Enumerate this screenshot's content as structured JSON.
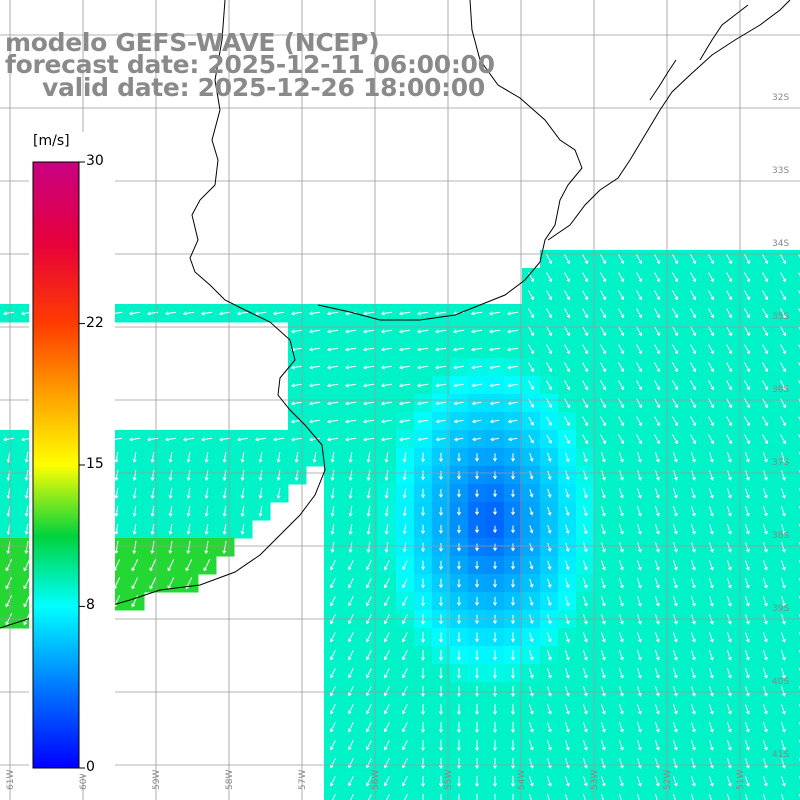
{
  "title": {
    "line1": "modelo GEFS-WAVE (NCEP)",
    "line2": "forecast date: 2025-12-11 06:00:00",
    "line3": "valid date: 2025-12-26 18:00:00"
  },
  "colorbar": {
    "unit": "[m/s]",
    "ticks": [
      {
        "value": 30,
        "label": "30"
      },
      {
        "value": 22,
        "label": "22"
      },
      {
        "value": 15,
        "label": "15"
      },
      {
        "value": 8,
        "label": "8"
      },
      {
        "value": 0,
        "label": "0"
      }
    ],
    "min": 0,
    "max": 30
  },
  "lat_labels": [
    "32S",
    "33S",
    "34S",
    "35S",
    "36S",
    "37S",
    "38S",
    "39S",
    "40S",
    "41S"
  ],
  "lon_labels": [
    "61W",
    "60W",
    "59W",
    "58W",
    "57W",
    "56W",
    "55W",
    "54W",
    "53W",
    "52W",
    "51W"
  ],
  "colors": {
    "land": "#ffffff",
    "coast": "#000000",
    "grid": "#9a9a9a",
    "arrow": "#ffffff",
    "title": "#8a8a8a"
  }
}
